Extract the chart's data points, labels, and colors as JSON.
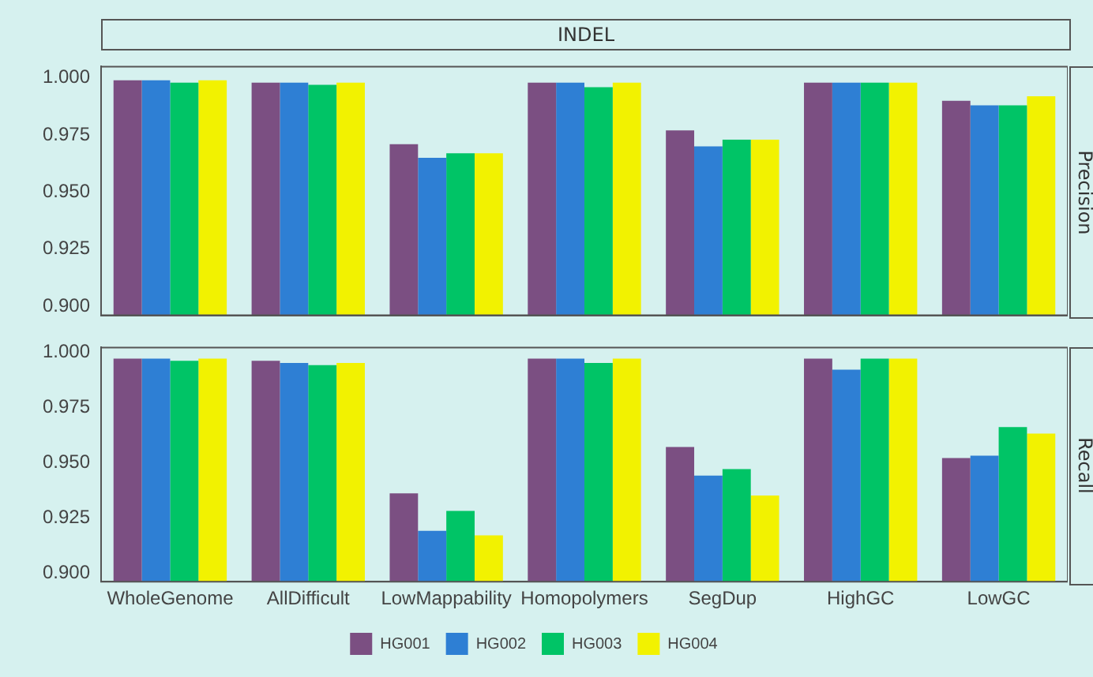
{
  "chart_data": [
    {
      "type": "bar",
      "title": "INDEL",
      "ylabel": "Precision",
      "categories": [
        null,
        null,
        null,
        null,
        null,
        null,
        null
      ],
      "series": [
        {
          "color": "#7b4f82",
          "values": [
            0.999,
            0.998,
            0.971,
            0.998,
            0.977,
            0.998,
            0.99
          ]
        },
        {
          "color": "#2e7fd4",
          "values": [
            0.999,
            0.998,
            0.965,
            0.998,
            0.97,
            0.998,
            0.988
          ]
        },
        {
          "color": "#00c466",
          "values": [
            0.998,
            0.997,
            0.967,
            0.996,
            0.973,
            0.998,
            0.988
          ]
        },
        {
          "color": "#f2f200",
          "values": [
            0.999,
            0.998,
            0.967,
            0.998,
            0.973,
            0.998,
            0.992
          ]
        }
      ],
      "ylim": [
        0.896,
        1.005
      ],
      "yticks": [
        {
          "value": 0.9,
          "label": "0.900"
        },
        {
          "value": 0.925,
          "label": "0.925"
        },
        {
          "value": 0.95,
          "label": "0.950"
        },
        {
          "value": 0.975,
          "label": "0.975"
        },
        {
          "value": 1,
          "label": "1.000"
        }
      ],
      "tick_labels": "y",
      "legend": false,
      "grid": false
    },
    {
      "type": "bar",
      "ylabel": "Recall",
      "categories": [
        "WholeGenome",
        "AllDifficult",
        "LowMappability",
        "Homopolymers",
        "SegDup",
        "HighGC",
        "LowGC"
      ],
      "series": [
        {
          "name": "HG001",
          "color": "#7b4f82",
          "values": [
            0.997,
            0.996,
            0.936,
            0.997,
            0.957,
            0.997,
            0.952
          ]
        },
        {
          "name": "HG002",
          "color": "#2e7fd4",
          "values": [
            0.997,
            0.995,
            0.919,
            0.997,
            0.944,
            0.992,
            0.953
          ]
        },
        {
          "name": "HG003",
          "color": "#00c466",
          "values": [
            0.996,
            0.994,
            0.928,
            0.995,
            0.947,
            0.997,
            0.966
          ]
        },
        {
          "name": "HG004",
          "color": "#f2f200",
          "values": [
            0.997,
            0.995,
            0.917,
            0.997,
            0.935,
            0.997,
            0.963
          ]
        }
      ],
      "ylim": [
        0.896,
        1.002
      ],
      "yticks": [
        {
          "value": 0.9,
          "label": "0.900"
        },
        {
          "value": 0.925,
          "label": "0.925"
        },
        {
          "value": 0.95,
          "label": "0.950"
        },
        {
          "value": 0.975,
          "label": "0.975"
        },
        {
          "value": 1,
          "label": "1.000"
        }
      ],
      "legend": "bottom",
      "grid": false
    }
  ]
}
